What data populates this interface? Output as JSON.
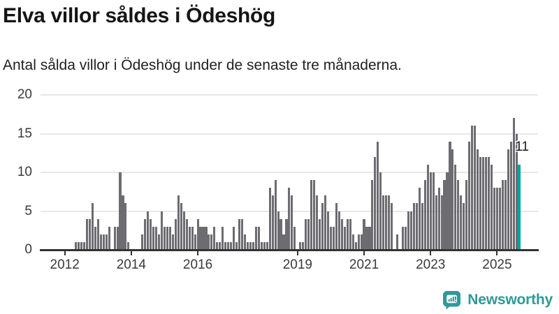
{
  "header": {
    "title": "Elva villor såldes i Ödeshög",
    "subtitle": "Antal sålda villor i Ödeshög under de senaste tre månaderna."
  },
  "chart_data": {
    "type": "bar",
    "title": "Elva villor såldes i Ödeshög",
    "subtitle": "Antal sålda villor i Ödeshög under de senaste tre månaderna.",
    "x_frequency": "monthly",
    "x_start_year": 2012,
    "x_start_month": 1,
    "values": [
      0,
      0,
      0,
      0,
      1,
      1,
      1,
      1,
      4,
      4,
      6,
      3,
      4,
      2,
      2,
      2,
      3,
      0,
      3,
      3,
      10,
      7,
      6,
      1,
      0,
      0,
      0,
      0,
      2,
      4,
      5,
      4,
      3,
      3,
      2,
      5,
      3,
      3,
      3,
      2,
      4,
      7,
      6,
      5,
      4,
      3,
      3,
      2,
      4,
      3,
      3,
      3,
      2,
      2,
      3,
      1,
      1,
      3,
      1,
      1,
      1,
      3,
      1,
      4,
      4,
      2,
      1,
      1,
      1,
      3,
      3,
      1,
      1,
      1,
      8,
      7,
      9,
      5,
      4,
      2,
      4,
      8,
      7,
      3,
      0,
      1,
      1,
      4,
      4,
      9,
      9,
      7,
      4,
      6,
      7,
      5,
      3,
      3,
      6,
      5,
      4,
      3,
      4,
      4,
      2,
      1,
      2,
      2,
      4,
      3,
      3,
      9,
      12,
      14,
      10,
      7,
      7,
      7,
      6,
      0,
      2,
      0,
      3,
      3,
      5,
      5,
      6,
      6,
      8,
      6,
      9,
      11,
      10,
      10,
      7,
      8,
      7,
      9,
      10,
      14,
      13,
      11,
      9,
      7,
      6,
      9,
      14,
      16,
      16,
      13,
      12,
      12,
      12,
      12,
      11,
      8,
      8,
      8,
      9,
      9,
      13,
      14,
      17,
      15,
      11
    ],
    "highlight": {
      "index": 164,
      "label": "11",
      "value": 11
    },
    "ylim": [
      0,
      20
    ],
    "y_ticks": [
      0,
      5,
      10,
      15,
      20
    ],
    "x_tick_years": [
      2012,
      2014,
      2016,
      2019,
      2021,
      2023,
      2025
    ],
    "grid": true,
    "legend": false,
    "colors": {
      "bar": "#6c6c71",
      "highlight": "#00a3ab",
      "grid": "#e8e8e8",
      "axis": "#333333",
      "tick_text": "#3a3a3a"
    }
  },
  "footer": {
    "brand": "Newsworthy",
    "brand_color": "#2e9a98"
  }
}
